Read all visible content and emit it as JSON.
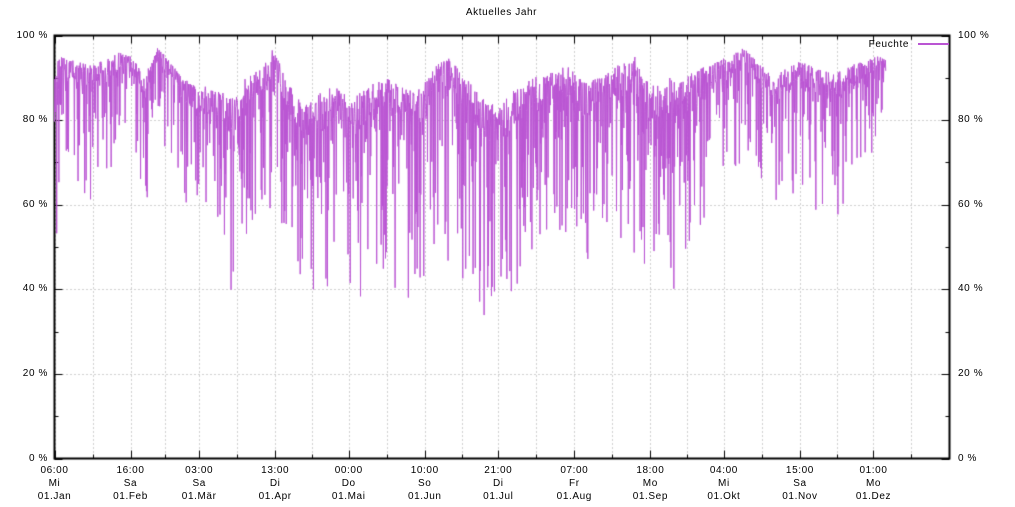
{
  "title": "Aktuelles Jahr",
  "legend": {
    "label": "Feuchte",
    "color": "#BA55D3",
    "position": "top-right"
  },
  "y_axis": {
    "unit": "%",
    "min": 0,
    "max": 100,
    "major_step": 20,
    "minor_step": 10,
    "ticks": [
      {
        "value": 100,
        "label": "100 %"
      },
      {
        "value": 80,
        "label": "80 %"
      },
      {
        "value": 60,
        "label": "60 %"
      },
      {
        "value": 40,
        "label": "40 %"
      },
      {
        "value": 20,
        "label": "20 %"
      },
      {
        "value": 0,
        "label": "0 %"
      }
    ]
  },
  "chart_data": {
    "type": "line",
    "title": "Aktuelles Jahr",
    "xlabel": "",
    "ylabel": "%",
    "ylim": [
      0,
      100
    ],
    "grid": true,
    "legend_position": "top-right",
    "series": [
      {
        "name": "Feuchte",
        "color": "#BA55D3"
      }
    ],
    "days_in_year": 365,
    "month_start_days": [
      0,
      31,
      59,
      90,
      120,
      151,
      181,
      212,
      243,
      273,
      304,
      334
    ],
    "x_ticks": [
      {
        "day": 0,
        "time": "06:00",
        "weekday": "Mi",
        "date": "01.Jan"
      },
      {
        "day": 31,
        "time": "16:00",
        "weekday": "Sa",
        "date": "01.Feb"
      },
      {
        "day": 59,
        "time": "03:00",
        "weekday": "Sa",
        "date": "01.Mär"
      },
      {
        "day": 90,
        "time": "13:00",
        "weekday": "Di",
        "date": "01.Apr"
      },
      {
        "day": 120,
        "time": "00:00",
        "weekday": "Do",
        "date": "01.Mai"
      },
      {
        "day": 151,
        "time": "10:00",
        "weekday": "So",
        "date": "01.Jun"
      },
      {
        "day": 181,
        "time": "21:00",
        "weekday": "Di",
        "date": "01.Jul"
      },
      {
        "day": 212,
        "time": "07:00",
        "weekday": "Fr",
        "date": "01.Aug"
      },
      {
        "day": 243,
        "time": "18:00",
        "weekday": "Mo",
        "date": "01.Sep"
      },
      {
        "day": 273,
        "time": "04:00",
        "weekday": "Mi",
        "date": "01.Okt"
      },
      {
        "day": 304,
        "time": "15:00",
        "weekday": "Sa",
        "date": "01.Nov"
      },
      {
        "day": 334,
        "time": "01:00",
        "weekday": "Mo",
        "date": "01.Dez"
      }
    ],
    "data_end_day": 339,
    "envelope_note": "Humidity oscillates densely between lo and hi (% rel. humidity) read off the plot; triples are [day_of_year, lo, hi].",
    "envelope": [
      [
        0,
        44,
        93
      ],
      [
        3,
        60,
        95
      ],
      [
        8,
        66,
        94
      ],
      [
        14,
        58,
        93
      ],
      [
        20,
        62,
        94
      ],
      [
        26,
        72,
        96
      ],
      [
        31,
        72,
        95
      ],
      [
        37,
        58,
        91
      ],
      [
        42,
        76,
        97
      ],
      [
        47,
        70,
        94
      ],
      [
        52,
        60,
        90
      ],
      [
        58,
        55,
        88
      ],
      [
        64,
        52,
        88
      ],
      [
        70,
        40,
        86
      ],
      [
        73,
        33,
        85
      ],
      [
        78,
        52,
        90
      ],
      [
        84,
        56,
        92
      ],
      [
        89,
        60,
        97
      ],
      [
        96,
        50,
        88
      ],
      [
        101,
        42,
        84
      ],
      [
        107,
        35,
        86
      ],
      [
        114,
        38,
        88
      ],
      [
        121,
        33,
        85
      ],
      [
        128,
        42,
        88
      ],
      [
        135,
        45,
        90
      ],
      [
        144,
        31,
        87
      ],
      [
        150,
        42,
        88
      ],
      [
        156,
        50,
        93
      ],
      [
        161,
        46,
        95
      ],
      [
        168,
        40,
        90
      ],
      [
        175,
        34,
        85
      ],
      [
        181,
        31,
        83
      ],
      [
        188,
        37,
        88
      ],
      [
        195,
        45,
        90
      ],
      [
        202,
        48,
        91
      ],
      [
        209,
        50,
        93
      ],
      [
        216,
        43,
        89
      ],
      [
        223,
        46,
        90
      ],
      [
        230,
        50,
        93
      ],
      [
        237,
        46,
        95
      ],
      [
        243,
        40,
        88
      ],
      [
        250,
        40,
        90
      ],
      [
        256,
        39,
        90
      ],
      [
        263,
        41,
        92
      ],
      [
        270,
        55,
        94
      ],
      [
        275,
        62,
        95
      ],
      [
        281,
        70,
        97
      ],
      [
        287,
        62,
        94
      ],
      [
        293,
        54,
        90
      ],
      [
        298,
        60,
        92
      ],
      [
        304,
        62,
        94
      ],
      [
        311,
        58,
        92
      ],
      [
        318,
        55,
        91
      ],
      [
        325,
        60,
        93
      ],
      [
        331,
        65,
        94
      ],
      [
        335,
        75,
        95
      ],
      [
        339,
        86,
        95
      ]
    ]
  }
}
